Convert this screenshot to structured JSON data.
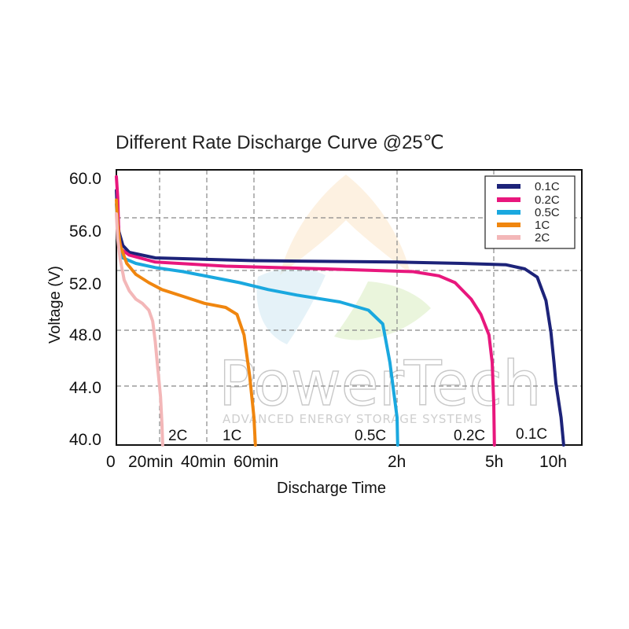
{
  "chart_data": {
    "type": "line",
    "title": "Different Rate Discharge Curve @25℃",
    "xlabel": "Discharge Time",
    "ylabel": "Voltage (V)",
    "ylim": [
      40.0,
      60.0
    ],
    "y_ticks": [
      "40.0",
      "44.0",
      "48.0",
      "52.0",
      "56.0",
      "60.0"
    ],
    "x_tick_labels": [
      "0",
      "20min",
      "40min",
      "60min",
      "2h",
      "5h",
      "10h"
    ],
    "grid": true,
    "legend_position": "top-right",
    "watermark": {
      "brand": "PowerTech",
      "tagline": "ADVANCED ENERGY STORAGE SYSTEMS"
    },
    "series": [
      {
        "name": "0.1C",
        "color": "#1d2379",
        "end_label": "0.1C",
        "points": [
          [
            0,
            58.5
          ],
          [
            0.01,
            56.5
          ],
          [
            0.02,
            55.5
          ],
          [
            0.05,
            54.5
          ],
          [
            0.1,
            54.0
          ],
          [
            0.3,
            53.6
          ],
          [
            1,
            53.4
          ],
          [
            2,
            53.3
          ],
          [
            4,
            53.2
          ],
          [
            6,
            53.1
          ],
          [
            7.5,
            52.8
          ],
          [
            8.5,
            52.2
          ],
          [
            9.2,
            50.5
          ],
          [
            9.6,
            48.2
          ],
          [
            9.85,
            46.0
          ],
          [
            10.0,
            44.5
          ],
          [
            10.1,
            42.0
          ],
          [
            10.15,
            40.0
          ]
        ]
      },
      {
        "name": "0.2C",
        "color": "#e8177d",
        "end_label": "0.2C",
        "points": [
          [
            0,
            59.5
          ],
          [
            0.01,
            58.0
          ],
          [
            0.02,
            55.0
          ],
          [
            0.04,
            54.2
          ],
          [
            0.1,
            53.8
          ],
          [
            0.3,
            53.3
          ],
          [
            0.8,
            53.0
          ],
          [
            1.5,
            52.8
          ],
          [
            2.5,
            52.6
          ],
          [
            3.3,
            52.3
          ],
          [
            3.8,
            51.8
          ],
          [
            4.3,
            50.6
          ],
          [
            4.6,
            49.5
          ],
          [
            4.85,
            48.0
          ],
          [
            4.95,
            46.0
          ],
          [
            5.0,
            43.0
          ],
          [
            5.05,
            40.0
          ]
        ]
      },
      {
        "name": "0.5C",
        "color": "#1aa8df",
        "end_label": "0.5C",
        "points": [
          [
            0,
            57.5
          ],
          [
            0.01,
            56.0
          ],
          [
            0.02,
            54.5
          ],
          [
            0.05,
            53.6
          ],
          [
            0.15,
            53.2
          ],
          [
            0.3,
            52.9
          ],
          [
            0.5,
            52.6
          ],
          [
            0.7,
            52.2
          ],
          [
            0.9,
            51.8
          ],
          [
            1.1,
            51.3
          ],
          [
            1.3,
            50.9
          ],
          [
            1.6,
            50.4
          ],
          [
            1.8,
            49.8
          ],
          [
            1.9,
            48.8
          ],
          [
            1.95,
            46.0
          ],
          [
            2.0,
            42.0
          ],
          [
            2.02,
            40.0
          ]
        ]
      },
      {
        "name": "1C",
        "color": "#f0860f",
        "end_label": "1C",
        "points": [
          [
            0,
            57.8
          ],
          [
            0.01,
            56.0
          ],
          [
            0.03,
            54.5
          ],
          [
            0.08,
            53.2
          ],
          [
            0.15,
            52.4
          ],
          [
            0.25,
            51.8
          ],
          [
            0.35,
            51.3
          ],
          [
            0.5,
            50.8
          ],
          [
            0.65,
            50.3
          ],
          [
            0.8,
            50.0
          ],
          [
            0.88,
            49.5
          ],
          [
            0.93,
            48.0
          ],
          [
            0.97,
            45.0
          ],
          [
            1.0,
            42.0
          ],
          [
            1.01,
            40.0
          ]
        ]
      },
      {
        "name": "2C",
        "color": "#f3b7b8",
        "end_label": "2C",
        "points": [
          [
            0,
            56.8
          ],
          [
            0.01,
            55.0
          ],
          [
            0.03,
            53.5
          ],
          [
            0.06,
            52.0
          ],
          [
            0.1,
            51.2
          ],
          [
            0.15,
            50.6
          ],
          [
            0.2,
            50.3
          ],
          [
            0.25,
            49.8
          ],
          [
            0.28,
            49.0
          ],
          [
            0.3,
            47.5
          ],
          [
            0.32,
            45.5
          ],
          [
            0.34,
            43.5
          ],
          [
            0.35,
            41.5
          ],
          [
            0.355,
            40.0
          ]
        ]
      }
    ]
  }
}
